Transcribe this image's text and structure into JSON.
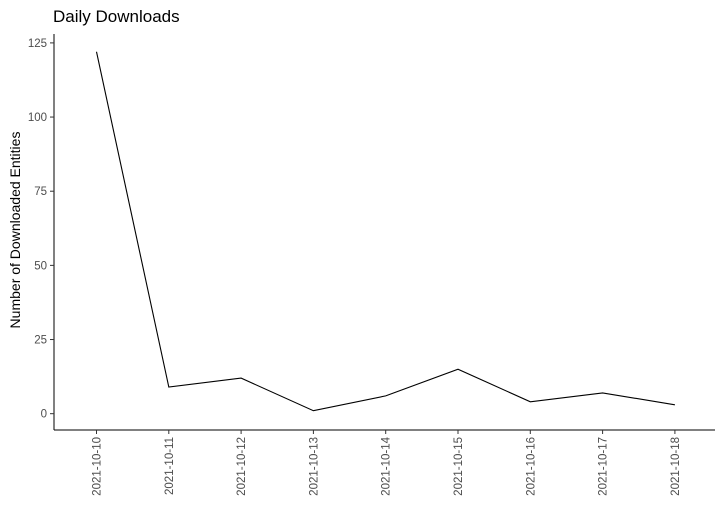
{
  "chart_data": {
    "type": "line",
    "title": "Daily Downloads",
    "xlabel": "",
    "ylabel": "Number of Downloaded Entities",
    "categories": [
      "2021-10-10",
      "2021-10-11",
      "2021-10-12",
      "2021-10-13",
      "2021-10-14",
      "2021-10-15",
      "2021-10-16",
      "2021-10-17",
      "2021-10-18"
    ],
    "values": [
      122,
      9,
      12,
      1,
      6,
      15,
      4,
      7,
      3
    ],
    "ylim": [
      -5.5,
      128
    ],
    "yticks": [
      0,
      25,
      50,
      75,
      100,
      125
    ],
    "grid": false,
    "legend": "none",
    "line_color": "#000000"
  }
}
